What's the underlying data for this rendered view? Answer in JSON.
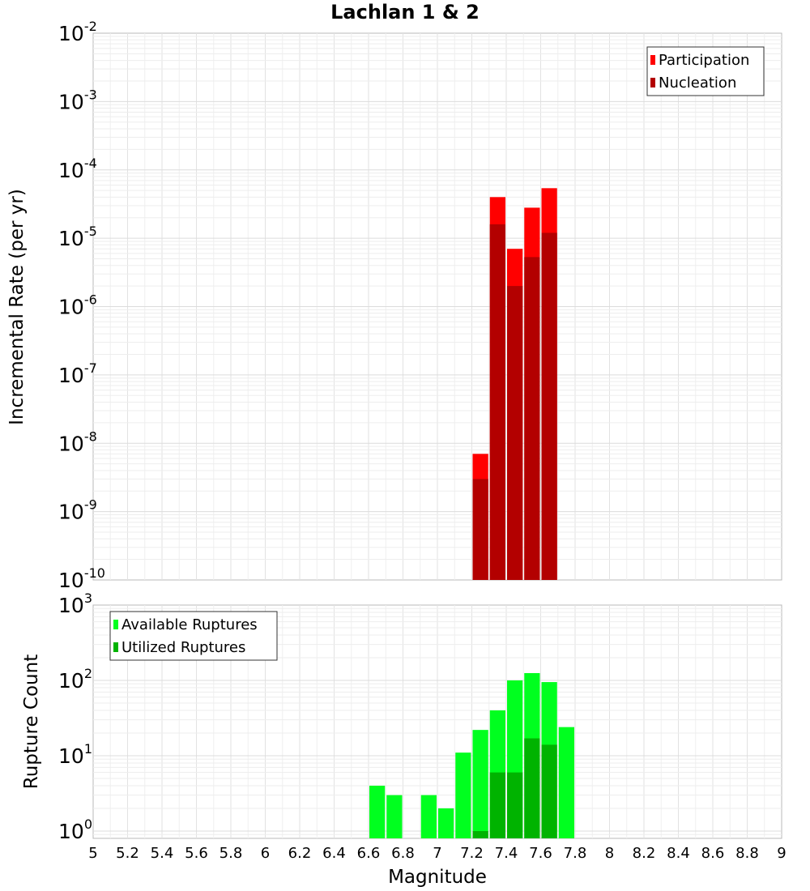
{
  "chart_data": [
    {
      "type": "bar",
      "title": "Lachlan 1 & 2",
      "ylabel": "Incremental Rate (per yr)",
      "xlabel": "",
      "yscale": "log",
      "ylim": [
        1e-10,
        0.01
      ],
      "xlim": [
        5,
        9
      ],
      "ytick_labels": [
        {
          "base": "10",
          "exp": "-2"
        },
        {
          "base": "10",
          "exp": "-3"
        },
        {
          "base": "10",
          "exp": "-4"
        },
        {
          "base": "10",
          "exp": "-5"
        },
        {
          "base": "10",
          "exp": "-6"
        },
        {
          "base": "10",
          "exp": "-7"
        },
        {
          "base": "10",
          "exp": "-8"
        },
        {
          "base": "10",
          "exp": "-9"
        },
        {
          "base": "10",
          "exp": "-10"
        }
      ],
      "bar_width": 0.1,
      "legend_position": "top-right",
      "series": [
        {
          "name": "Participation",
          "color": "#ff0000",
          "x": [
            7.25,
            7.35,
            7.45,
            7.55,
            7.65
          ],
          "values": [
            7e-09,
            4e-05,
            7e-06,
            2.8e-05,
            5.4e-05
          ]
        },
        {
          "name": "Nucleation",
          "color": "#b30000",
          "x": [
            7.25,
            7.35,
            7.45,
            7.55,
            7.65
          ],
          "values": [
            3e-09,
            1.6e-05,
            2e-06,
            5.3e-06,
            1.2e-05
          ]
        }
      ],
      "grid": true
    },
    {
      "type": "bar",
      "title": "",
      "ylabel": "Rupture Count",
      "xlabel": "Magnitude",
      "yscale": "log",
      "ylim": [
        0.8,
        1000
      ],
      "xlim": [
        5,
        9
      ],
      "ytick_labels": [
        {
          "base": "10",
          "exp": "3"
        },
        {
          "base": "10",
          "exp": "2"
        },
        {
          "base": "10",
          "exp": "1"
        },
        {
          "base": "10",
          "exp": "0"
        }
      ],
      "xtick_labels": [
        "5",
        "5.2",
        "5.4",
        "5.6",
        "5.8",
        "6",
        "6.2",
        "6.4",
        "6.6",
        "6.8",
        "7",
        "7.2",
        "7.4",
        "7.6",
        "7.8",
        "8",
        "8.2",
        "8.4",
        "8.6",
        "8.8",
        "9"
      ],
      "bar_width": 0.1,
      "legend_position": "top-left",
      "series": [
        {
          "name": "Available Ruptures",
          "color": "#00ff1f",
          "x": [
            6.65,
            6.75,
            6.95,
            7.05,
            7.15,
            7.25,
            7.35,
            7.45,
            7.55,
            7.65,
            7.75
          ],
          "values": [
            4,
            3,
            3,
            2,
            11,
            22,
            40,
            100,
            125,
            95,
            24
          ]
        },
        {
          "name": "Utilized Ruptures",
          "color": "#00b300",
          "x": [
            7.25,
            7.35,
            7.45,
            7.55,
            7.65
          ],
          "values": [
            1,
            6,
            6,
            17,
            14
          ]
        }
      ],
      "grid": true
    }
  ]
}
